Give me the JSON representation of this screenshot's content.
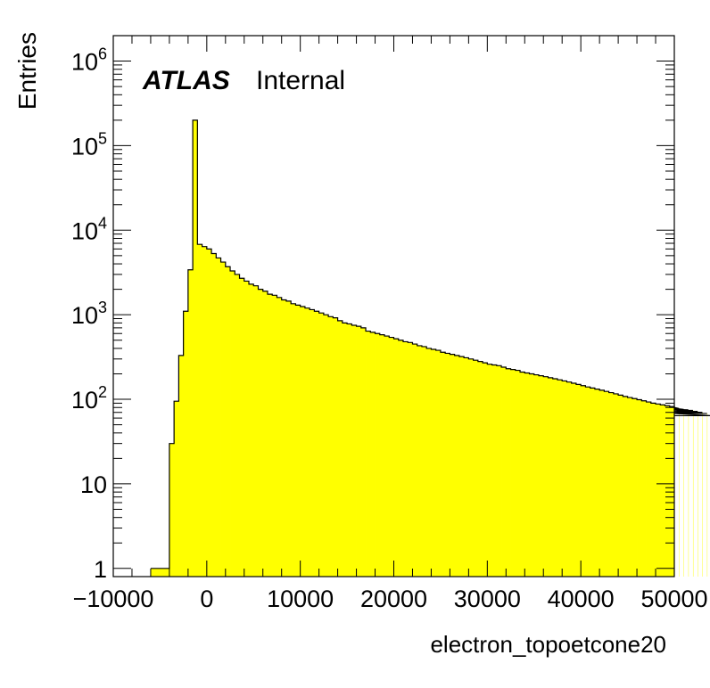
{
  "chart_data": {
    "type": "histogram",
    "title": "",
    "xlabel": "electron_topoetcone20",
    "ylabel": "Entries",
    "annotation": {
      "bold": "ATLAS",
      "normal": "Internal"
    },
    "xlim": [
      -10000,
      50000
    ],
    "ylim": [
      0.8,
      2000000
    ],
    "yscale": "log",
    "grid": false,
    "fill_color": "#ffff00",
    "line_color": "#000000",
    "x_ticks": [
      -10000,
      0,
      10000,
      20000,
      30000,
      40000,
      50000
    ],
    "x_tick_labels": [
      "−10000",
      "0",
      "10000",
      "20000",
      "30000",
      "40000",
      "50000"
    ],
    "y_ticks": [
      1,
      10,
      100,
      1000,
      10000,
      100000,
      1000000
    ],
    "y_tick_labels": [
      {
        "base": "1",
        "exp": ""
      },
      {
        "base": "10",
        "exp": ""
      },
      {
        "base": "10",
        "exp": "2"
      },
      {
        "base": "10",
        "exp": "3"
      },
      {
        "base": "10",
        "exp": "4"
      },
      {
        "base": "10",
        "exp": "5"
      },
      {
        "base": "10",
        "exp": "6"
      }
    ],
    "bin_width": 500,
    "bins_start": -6000,
    "values": [
      1,
      1,
      1,
      1,
      30,
      95,
      330,
      1100,
      3400,
      200000,
      6800,
      6400,
      6000,
      5300,
      4700,
      4200,
      3700,
      3300,
      3000,
      2700,
      2500,
      2300,
      2200,
      2000,
      1900,
      1750,
      1700,
      1600,
      1500,
      1450,
      1350,
      1300,
      1250,
      1200,
      1150,
      1100,
      1050,
      1000,
      950,
      920,
      850,
      800,
      780,
      750,
      730,
      700,
      640,
      620,
      600,
      580,
      560,
      540,
      520,
      500,
      480,
      470,
      450,
      430,
      420,
      400,
      390,
      380,
      360,
      350,
      340,
      330,
      320,
      310,
      300,
      290,
      280,
      270,
      260,
      255,
      250,
      240,
      230,
      225,
      220,
      210,
      205,
      200,
      195,
      190,
      185,
      180,
      175,
      170,
      165,
      160,
      155,
      150,
      145,
      140,
      136,
      132,
      128,
      124,
      120,
      116,
      112,
      108,
      105,
      102,
      99,
      96,
      93,
      90,
      88,
      86,
      84,
      82,
      80,
      78,
      76,
      75,
      74,
      72,
      70,
      68,
      64
    ]
  }
}
